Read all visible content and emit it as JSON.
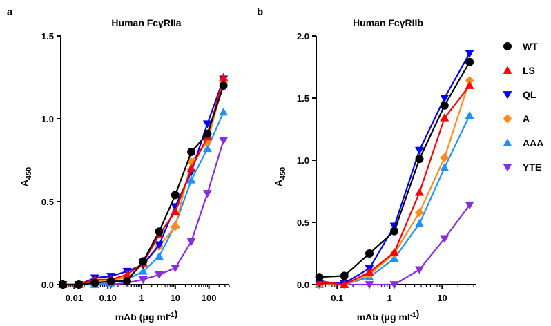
{
  "chart_data": [
    {
      "type": "line",
      "panel": "a",
      "title": "Human FcγRIIa",
      "xlabel": "mAb (μg ml⁻¹)",
      "ylabel": "A450",
      "x_scale": "log",
      "xlim": [
        0.004,
        400
      ],
      "ylim": [
        0,
        1.5
      ],
      "xticks": [
        {
          "value": 0.01,
          "label": "0.01"
        },
        {
          "value": 0.1,
          "label": "0.10"
        },
        {
          "value": 1,
          "label": "1"
        },
        {
          "value": 10,
          "label": "10"
        },
        {
          "value": 100,
          "label": "100"
        }
      ],
      "yticks": [
        {
          "value": 0,
          "label": "0.0"
        },
        {
          "value": 0.5,
          "label": "0.5"
        },
        {
          "value": 1.0,
          "label": "1.0"
        },
        {
          "value": 1.5,
          "label": "1.5"
        }
      ],
      "x": [
        0.0046,
        0.0137,
        0.0412,
        0.123,
        0.37,
        1.11,
        3.33,
        10,
        30,
        90,
        270
      ],
      "series": [
        {
          "name": "WT",
          "color": "#000000",
          "marker": "circle",
          "values": [
            0.0,
            0.0,
            0.01,
            0.02,
            0.02,
            0.14,
            0.32,
            0.54,
            0.8,
            0.91,
            1.2
          ]
        },
        {
          "name": "LS",
          "color": "#ff0000",
          "marker": "triangle-up",
          "values": [
            0.0,
            0.0,
            0.03,
            0.03,
            0.06,
            0.13,
            0.3,
            0.44,
            0.7,
            0.89,
            1.25
          ]
        },
        {
          "name": "QL",
          "color": "#0000ff",
          "marker": "triangle-down",
          "values": [
            0.0,
            0.0,
            0.04,
            0.05,
            0.08,
            0.12,
            0.24,
            0.47,
            0.68,
            0.97,
            1.24
          ]
        },
        {
          "name": "A",
          "color": "#ff8c1a",
          "marker": "diamond",
          "values": [
            0.0,
            0.0,
            0.02,
            0.03,
            0.04,
            0.12,
            0.23,
            0.35,
            0.74,
            0.86,
            1.22
          ]
        },
        {
          "name": "AAA",
          "color": "#1e90ff",
          "marker": "triangle-up",
          "values": [
            0.0,
            0.0,
            0.0,
            0.01,
            0.03,
            0.08,
            0.17,
            0.36,
            0.63,
            0.82,
            1.04
          ]
        },
        {
          "name": "YTE",
          "color": "#8a2be2",
          "marker": "triangle-down",
          "values": [
            0.0,
            0.0,
            0.0,
            0.0,
            0.01,
            0.03,
            0.06,
            0.1,
            0.26,
            0.55,
            0.87
          ]
        }
      ]
    },
    {
      "type": "line",
      "panel": "b",
      "title": "Human FcγRIIb",
      "xlabel": "mAb (μg ml⁻¹)",
      "ylabel": "A450",
      "x_scale": "log",
      "xlim": [
        0.04,
        45
      ],
      "ylim": [
        0,
        2.0
      ],
      "xticks": [
        {
          "value": 0.1,
          "label": "0.1"
        },
        {
          "value": 1,
          "label": "1"
        },
        {
          "value": 10,
          "label": "10"
        }
      ],
      "yticks": [
        {
          "value": 0,
          "label": "0.0"
        },
        {
          "value": 0.5,
          "label": "0.5"
        },
        {
          "value": 1.0,
          "label": "1.0"
        },
        {
          "value": 1.5,
          "label": "1.5"
        },
        {
          "value": 2.0,
          "label": "2.0"
        }
      ],
      "x": [
        0.046,
        0.137,
        0.412,
        1.23,
        3.7,
        11.1,
        33.3
      ],
      "series": [
        {
          "name": "WT",
          "color": "#000000",
          "marker": "circle",
          "values": [
            0.06,
            0.07,
            0.25,
            0.43,
            1.01,
            1.44,
            1.79
          ]
        },
        {
          "name": "LS",
          "color": "#ff0000",
          "marker": "triangle-up",
          "values": [
            0.02,
            0.0,
            0.1,
            0.26,
            0.74,
            1.34,
            1.6
          ]
        },
        {
          "name": "QL",
          "color": "#0000ff",
          "marker": "triangle-down",
          "values": [
            0.01,
            0.01,
            0.13,
            0.47,
            1.08,
            1.5,
            1.86
          ]
        },
        {
          "name": "A",
          "color": "#ff8c1a",
          "marker": "diamond",
          "values": [
            0.0,
            0.0,
            0.08,
            0.25,
            0.58,
            1.02,
            1.64
          ]
        },
        {
          "name": "AAA",
          "color": "#1e90ff",
          "marker": "triangle-up",
          "values": [
            0.0,
            0.0,
            0.06,
            0.21,
            0.49,
            0.94,
            1.36
          ]
        },
        {
          "name": "YTE",
          "color": "#8a2be2",
          "marker": "triangle-down",
          "values": [
            0.03,
            0.0,
            0.0,
            0.0,
            0.12,
            0.37,
            0.64
          ]
        }
      ]
    }
  ],
  "legend": {
    "placement": "right",
    "items": [
      {
        "name": "WT",
        "color": "#000000",
        "marker": "circle"
      },
      {
        "name": "LS",
        "color": "#ff0000",
        "marker": "triangle-up"
      },
      {
        "name": "QL",
        "color": "#0000ff",
        "marker": "triangle-down"
      },
      {
        "name": "A",
        "color": "#ff8c1a",
        "marker": "diamond"
      },
      {
        "name": "AAA",
        "color": "#1e90ff",
        "marker": "triangle-up"
      },
      {
        "name": "YTE",
        "color": "#8a2be2",
        "marker": "triangle-down"
      }
    ]
  }
}
